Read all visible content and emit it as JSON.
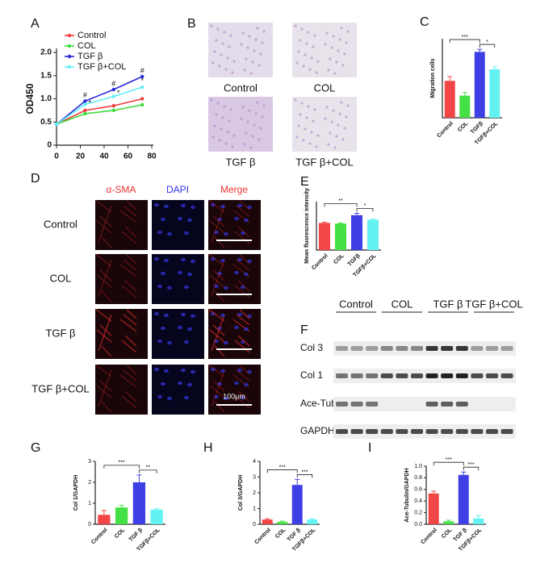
{
  "panel_letters": [
    "A",
    "B",
    "C",
    "D",
    "E",
    "F",
    "G",
    "H",
    "I"
  ],
  "migration_images": {
    "labels": [
      "Control",
      "COL",
      "TGF β",
      "TGF β+COL"
    ]
  },
  "if_images": {
    "columns": [
      "α-SMA",
      "DAPI",
      "Merge"
    ],
    "rows": [
      "Control",
      "COL",
      "TGF β",
      "TGF β+COL"
    ],
    "scale_bar": "100μm"
  },
  "western_blot": {
    "groups": [
      "Control",
      "COL",
      "TGF β",
      "TGF β+COL"
    ],
    "rows": [
      "Col 3",
      "Col 1",
      "Ace-Tubulin",
      "GAPDH"
    ]
  },
  "chart_data": [
    {
      "type": "line",
      "ylabel": "OD450",
      "x": [
        0,
        24,
        48,
        72
      ],
      "xlim": [
        0,
        80
      ],
      "xticks": [
        0,
        20,
        40,
        60,
        80
      ],
      "ylim": [
        0,
        2
      ],
      "yticks": [
        0,
        0.5,
        {
          "value": 1,
          "label": "1.0"
        },
        1.5,
        {
          "value": 2,
          "label": "2.0"
        }
      ],
      "series": [
        {
          "name": "Control",
          "color": "#f03c3c",
          "values": [
            0.45,
            0.75,
            0.85,
            1.0
          ]
        },
        {
          "name": "COL",
          "color": "#3ddc3d",
          "values": [
            0.45,
            0.68,
            0.75,
            0.87
          ]
        },
        {
          "name": "TGF β",
          "color": "#2a2ad8",
          "values": [
            0.45,
            0.95,
            1.2,
            1.48
          ]
        },
        {
          "name": "TGF β+COL",
          "color": "#5ff0f5",
          "values": [
            0.45,
            0.88,
            1.05,
            1.25
          ]
        }
      ],
      "annotations": [
        {
          "text": "#",
          "x": 24,
          "y": 1.07
        },
        {
          "text": "#",
          "x": 48,
          "y": 1.32
        },
        {
          "text": "#",
          "x": 72,
          "y": 1.6
        },
        {
          "text": "*",
          "x": 28,
          "y": 0.9
        },
        {
          "text": "*",
          "x": 52,
          "y": 1.12
        },
        {
          "text": "*",
          "x": 72,
          "y": 1.38
        }
      ]
    },
    {
      "type": "bar",
      "ylabel": "Migration cells",
      "categories": [
        "Control",
        "COL",
        "TGFβ",
        "TGFβ+COL"
      ],
      "values": [
        70,
        42,
        125,
        92
      ],
      "errors": [
        8,
        6,
        5,
        5
      ],
      "colors": [
        "#f24545",
        "#45e045",
        "#3f3fe6",
        "#62f2f2"
      ],
      "ylim": [
        0,
        150
      ],
      "significance": [
        {
          "text": "***",
          "from": 0,
          "to": 2
        },
        {
          "text": "*",
          "from": 2,
          "to": 3
        }
      ]
    },
    {
      "type": "bar",
      "ylabel": "Mean fluorescence intensity",
      "categories": [
        "Control",
        "COL",
        "TGFβ",
        "TGFβ+COL"
      ],
      "values": [
        42,
        41,
        54,
        47
      ],
      "errors": [
        1,
        1,
        3,
        1
      ],
      "colors": [
        "#f24545",
        "#45e045",
        "#3f3fe6",
        "#62f2f2"
      ],
      "ylim": [
        0,
        75
      ],
      "significance": [
        {
          "text": "**",
          "from": 0,
          "to": 2
        },
        {
          "text": "*",
          "from": 2,
          "to": 3
        }
      ]
    },
    {
      "type": "bar",
      "ylabel": "Col 1/GAPDH",
      "categories": [
        "Control",
        "COL",
        "TGF β",
        "TGFβ+COL"
      ],
      "values": [
        0.45,
        0.8,
        2.0,
        0.7
      ],
      "errors": [
        0.2,
        0.1,
        0.35,
        0.05
      ],
      "colors": [
        "#f24545",
        "#45e045",
        "#3f3fe6",
        "#62f2f2"
      ],
      "ylim": [
        0,
        3
      ],
      "yticks": [
        0,
        1,
        2,
        3
      ],
      "significance": [
        {
          "text": "***",
          "from": 0,
          "to": 2
        },
        {
          "text": "**",
          "from": 2,
          "to": 3
        }
      ]
    },
    {
      "type": "bar",
      "ylabel": "Col 3/GAPDH",
      "categories": [
        "Control",
        "COL",
        "TGF β",
        "TGFβ+COL"
      ],
      "values": [
        0.3,
        0.15,
        2.5,
        0.3
      ],
      "errors": [
        0.05,
        0.05,
        0.35,
        0.05
      ],
      "colors": [
        "#f24545",
        "#45e045",
        "#3f3fe6",
        "#62f2f2"
      ],
      "ylim": [
        0,
        4
      ],
      "yticks": [
        0,
        1,
        2,
        3,
        4
      ],
      "significance": [
        {
          "text": "***",
          "from": 0,
          "to": 2
        },
        {
          "text": "***",
          "from": 2,
          "to": 3
        }
      ]
    },
    {
      "type": "bar",
      "ylabel": "Ace-Tubulin/GAPDH",
      "categories": [
        "Control",
        "COL",
        "TGF β",
        "TGFβ+COL"
      ],
      "values": [
        0.53,
        0.05,
        0.85,
        0.1
      ],
      "errors": [
        0.04,
        0.02,
        0.05,
        0.05
      ],
      "colors": [
        "#f24545",
        "#45e045",
        "#3f3fe6",
        "#62f2f2"
      ],
      "ylim": [
        0,
        1
      ],
      "yticks": [
        {
          "value": 0,
          "label": "0.0"
        },
        0.2,
        0.4,
        0.6,
        0.8,
        {
          "value": 1,
          "label": "1.0"
        }
      ],
      "significance": [
        {
          "text": "***",
          "from": 0,
          "to": 2
        },
        {
          "text": "***",
          "from": 2,
          "to": 3
        }
      ]
    }
  ]
}
